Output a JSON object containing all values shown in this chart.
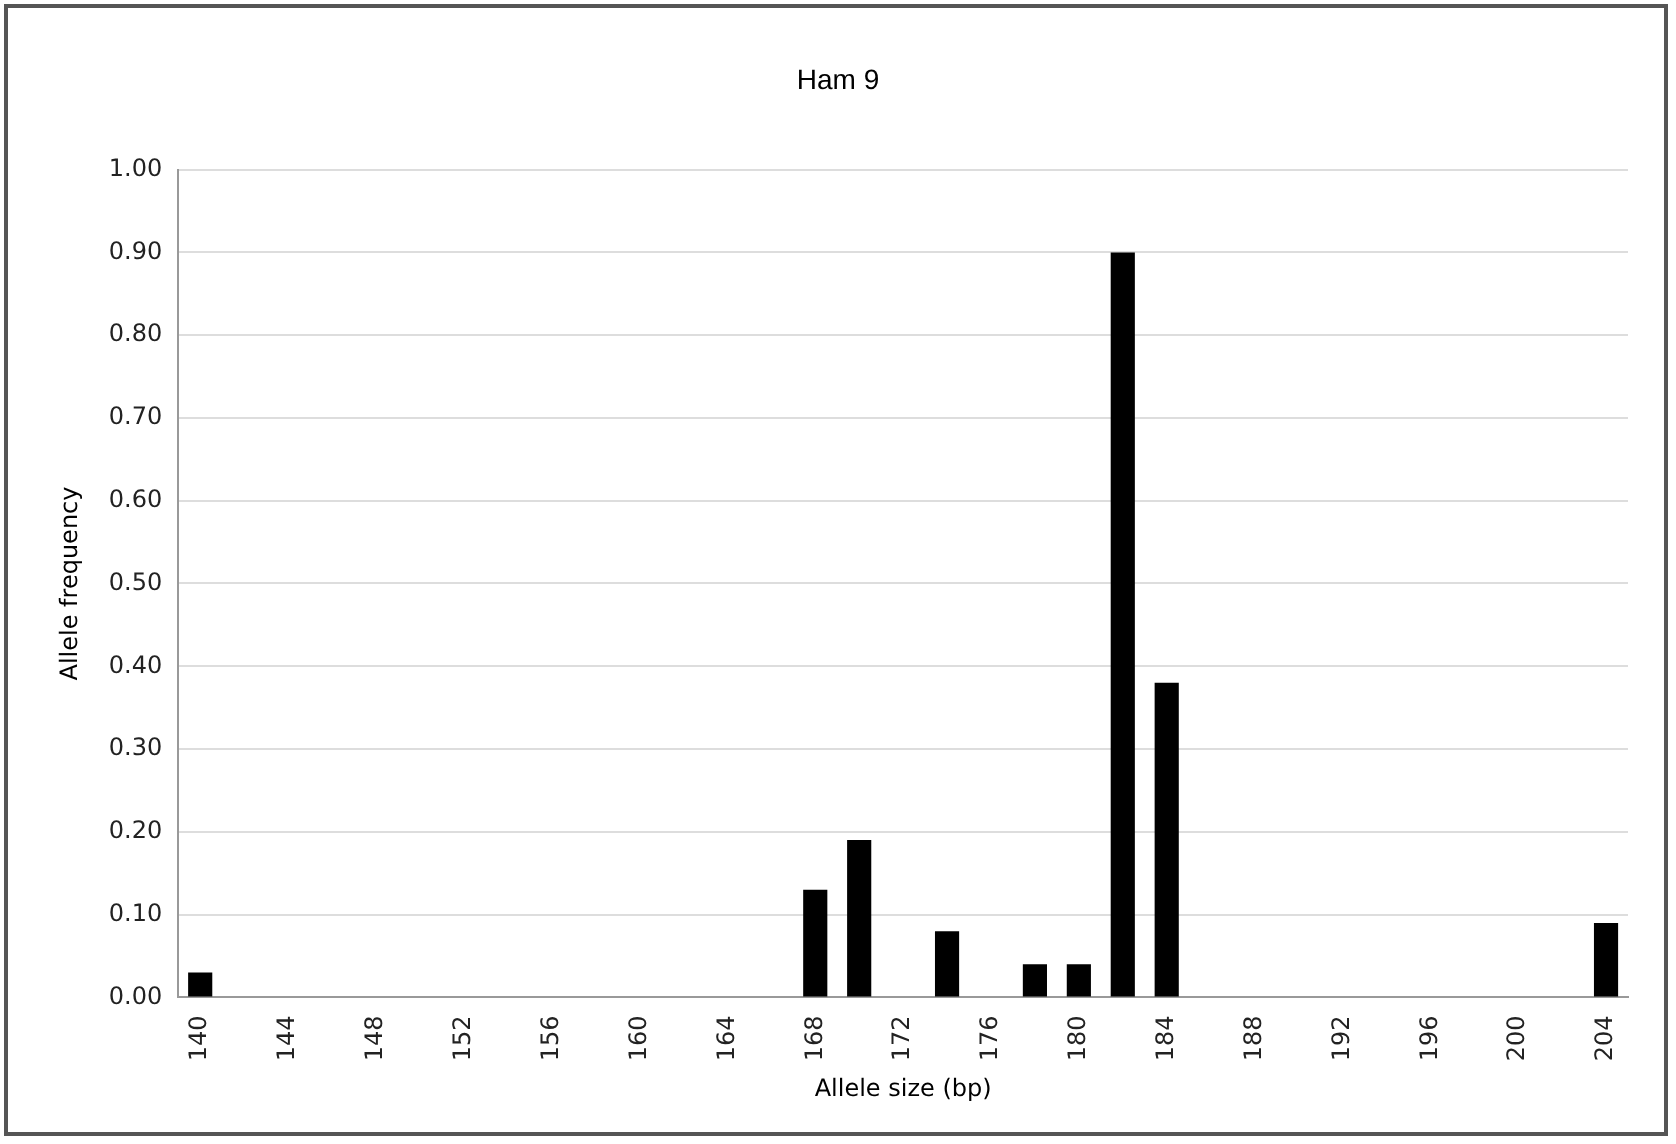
{
  "chart_data": {
    "type": "bar",
    "title": "Ham 9",
    "xlabel": "Allele size (bp)",
    "ylabel": "Allele frequency",
    "categories": [
      "140",
      null,
      "144",
      null,
      "148",
      null,
      "152",
      null,
      "156",
      null,
      "160",
      null,
      "164",
      null,
      "168",
      null,
      "172",
      null,
      "176",
      null,
      "180",
      null,
      "184",
      null,
      "188",
      null,
      "192",
      null,
      "196",
      null,
      "200",
      null,
      "204"
    ],
    "values": [
      0.03,
      0,
      0,
      0,
      0,
      0,
      0,
      0,
      0,
      0,
      0,
      0,
      0,
      0,
      0.13,
      0.19,
      0,
      0.08,
      0,
      0.04,
      0.04,
      0.9,
      0.38,
      0,
      0,
      0,
      0,
      0,
      0,
      0,
      0,
      0,
      0.09
    ],
    "color": "#000000",
    "ylim": [
      0,
      1
    ],
    "yticks": [
      {
        "value": 0,
        "label": "0.00"
      },
      {
        "value": 0.1,
        "label": "0.10"
      },
      {
        "value": 0.2,
        "label": "0.20"
      },
      {
        "value": 0.3,
        "label": "0.30"
      },
      {
        "value": 0.4,
        "label": "0.40"
      },
      {
        "value": 0.5,
        "label": "0.50"
      },
      {
        "value": 0.6,
        "label": "0.60"
      },
      {
        "value": 0.7,
        "label": "0.70"
      },
      {
        "value": 0.8,
        "label": "0.80"
      },
      {
        "value": 0.9,
        "label": "0.90"
      },
      {
        "value": 1,
        "label": "1.00"
      }
    ],
    "grid": "y",
    "legend": false
  }
}
